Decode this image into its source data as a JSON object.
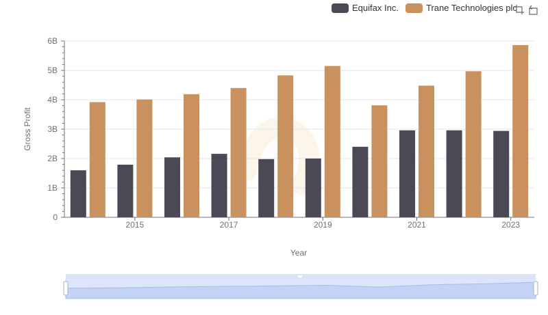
{
  "legend": {
    "items": [
      {
        "name": "Equifax Inc.",
        "color": "#4a4955"
      },
      {
        "name": "Trane Technologies plc",
        "color": "#c9915d"
      }
    ]
  },
  "toolbox": {
    "icons": [
      "zoom-icon",
      "restore-icon"
    ]
  },
  "chart_data": {
    "type": "bar",
    "categories": [
      "2014",
      "2015",
      "2016",
      "2017",
      "2018",
      "2019",
      "2020",
      "2021",
      "2022",
      "2023"
    ],
    "x_tick_labels": [
      "2015",
      "2017",
      "2019",
      "2021",
      "2023"
    ],
    "xlabel": "Year",
    "ylabel": "Gross Profit",
    "ylim": [
      0,
      6000000000
    ],
    "y_tick_labels": [
      "0",
      "1B",
      "2B",
      "3B",
      "4B",
      "5B",
      "6B"
    ],
    "grid": true,
    "legend_position": "top-right",
    "series": [
      {
        "name": "Equifax Inc.",
        "color": "#4a4955",
        "values": [
          1600000000,
          1790000000,
          2040000000,
          2160000000,
          1980000000,
          2000000000,
          2400000000,
          2960000000,
          2960000000,
          2940000000
        ]
      },
      {
        "name": "Trane Technologies plc",
        "color": "#c9915d",
        "values": [
          3920000000,
          4010000000,
          4190000000,
          4400000000,
          4830000000,
          5150000000,
          3810000000,
          4480000000,
          4970000000,
          5860000000
        ]
      }
    ],
    "datazoom": {
      "start": 0,
      "end": 100
    }
  }
}
